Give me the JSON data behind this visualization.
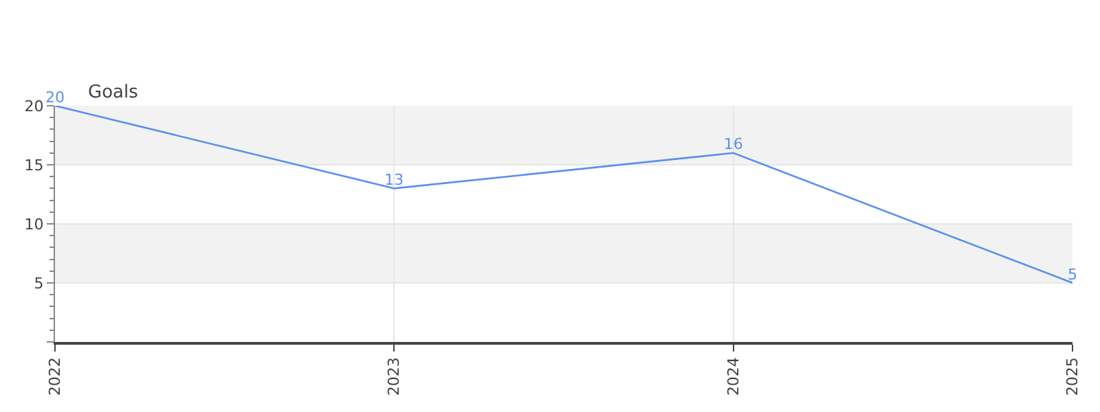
{
  "chart_data": {
    "type": "line",
    "ylabel": "Goals",
    "categories": [
      "2022",
      "2023",
      "2024",
      "2025"
    ],
    "series": [
      {
        "color": "#5b8ff0",
        "values": [
          20,
          13,
          16,
          5
        ]
      }
    ],
    "ylim": [
      0,
      20
    ],
    "yticks": [
      {
        "value": 0,
        "label": null
      },
      5,
      10,
      15,
      20
    ],
    "grid": true,
    "data_labels": true,
    "marker": "none",
    "line_style": "solid",
    "legend": false,
    "bands": [
      {
        "axis": "y",
        "from": 5,
        "to": 10,
        "color": "#f2f2f2"
      },
      {
        "axis": "y",
        "from": 15,
        "to": 20,
        "color": "#f2f2f2"
      }
    ]
  }
}
